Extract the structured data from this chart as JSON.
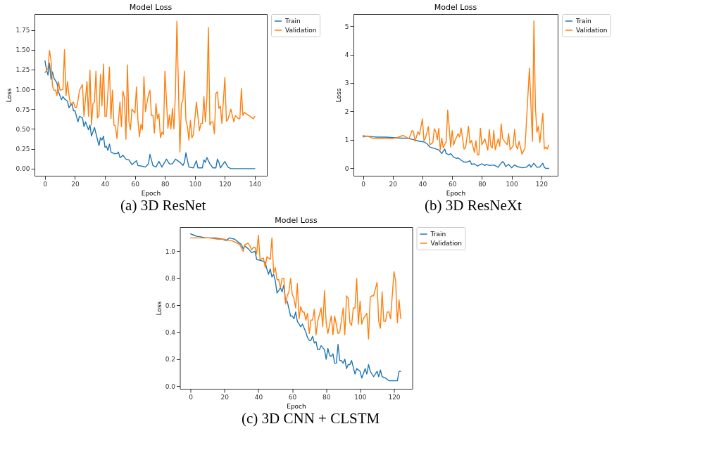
{
  "chart_data": [
    {
      "type": "line",
      "title": "Model Loss",
      "xlabel": "Epoch",
      "ylabel": "Loss",
      "annotations": [
        "(a) 3D ResNet"
      ],
      "legend": "right",
      "grid": false,
      "marker": "none",
      "line_style": "solid",
      "xlim": [
        -7,
        148
      ],
      "ylim": [
        -0.09,
        1.95
      ],
      "xticks": [
        0,
        20,
        40,
        60,
        80,
        100,
        120,
        140
      ],
      "yticks": [
        {
          "value": 0,
          "label": "0.00"
        },
        {
          "value": 0.25,
          "label": "0.25"
        },
        {
          "value": 0.5,
          "label": "0.50"
        },
        {
          "value": 0.75,
          "label": "0.75"
        },
        {
          "value": 1,
          "label": "1.00"
        },
        {
          "value": 1.25,
          "label": "1.25"
        },
        {
          "value": 1.5,
          "label": "1.50"
        },
        {
          "value": 1.75,
          "label": "1.75"
        }
      ],
      "series": [
        {
          "name": "Train",
          "color": "#1f77b4",
          "x": [
            0,
            1,
            2,
            3,
            4,
            5,
            6,
            8,
            9,
            11,
            12,
            13,
            15,
            16,
            18,
            19,
            20,
            22,
            23,
            25,
            26,
            27,
            29,
            30,
            31,
            33,
            36,
            37,
            38,
            39,
            40,
            41,
            42,
            43,
            44,
            46,
            48,
            49,
            50,
            51,
            52,
            54,
            56,
            58,
            61,
            62,
            65,
            67,
            69,
            70,
            72,
            74,
            76,
            78,
            81,
            83,
            85,
            87,
            90,
            92,
            93,
            94,
            96,
            99,
            101,
            102,
            105,
            106,
            107,
            108,
            110,
            112,
            114,
            115,
            116,
            117,
            120,
            122,
            124,
            140
          ],
          "values": [
            1.36,
            1.25,
            1.18,
            1.33,
            1.13,
            1.22,
            1.14,
            1.08,
            0.97,
            0.87,
            0.91,
            0.88,
            0.85,
            0.77,
            0.82,
            0.73,
            0.73,
            0.59,
            0.66,
            0.64,
            0.53,
            0.59,
            0.49,
            0.55,
            0.41,
            0.52,
            0.29,
            0.39,
            0.36,
            0.41,
            0.27,
            0.28,
            0.23,
            0.31,
            0.21,
            0.19,
            0.19,
            0.21,
            0.14,
            0.15,
            0.17,
            0.12,
            0.11,
            0.05,
            0.1,
            0.04,
            0.03,
            0.02,
            0.06,
            0.18,
            0.04,
            0.02,
            0.09,
            0.02,
            0.12,
            0.06,
            0.06,
            0.12,
            0.08,
            0.04,
            0.08,
            0.2,
            0.02,
            0.01,
            0.1,
            0.01,
            0.01,
            0.11,
            0.08,
            0.14,
            0.06,
            0.01,
            0.01,
            0.12,
            0.08,
            0.01,
            0.09,
            0.02,
            0.0,
            0.0
          ]
        },
        {
          "name": "Validation",
          "color": "#ff7f0e",
          "x": [
            0,
            2,
            3,
            4,
            5,
            6,
            7,
            8,
            9,
            10,
            12,
            13,
            14,
            15,
            16,
            17,
            19,
            20,
            21,
            22,
            23,
            25,
            26,
            28,
            29,
            30,
            31,
            32,
            33,
            34,
            35,
            36,
            37,
            38,
            39,
            40,
            41,
            43,
            44,
            45,
            46,
            47,
            48,
            50,
            51,
            52,
            53,
            54,
            55,
            56,
            57,
            58,
            60,
            61,
            62,
            63,
            64,
            65,
            66,
            67,
            69,
            70,
            71,
            72,
            73,
            74,
            75,
            76,
            77,
            78,
            79,
            80,
            82,
            83,
            84,
            85,
            86,
            87,
            88,
            90,
            91,
            92,
            93,
            94,
            95,
            96,
            97,
            98,
            99,
            101,
            103,
            104,
            105,
            106,
            107,
            108,
            109,
            110,
            111,
            112,
            113,
            114,
            115,
            116,
            117,
            118,
            120,
            121,
            122,
            124,
            126,
            127,
            129,
            130,
            131,
            132,
            133,
            136,
            139,
            140
          ],
          "values": [
            1.21,
            1.26,
            1.49,
            1.37,
            1.04,
            0.99,
            0.99,
            0.92,
            1.1,
            0.99,
            1.0,
            1.5,
            0.92,
            1.1,
            0.93,
            0.81,
            0.84,
            0.77,
            0.77,
            0.86,
            0.99,
            1.06,
            0.66,
            1.1,
            0.66,
            1.24,
            0.55,
            0.82,
            0.84,
            1.23,
            0.64,
            0.67,
            1.19,
            0.79,
            1.32,
            0.66,
            0.66,
            1.28,
            0.63,
            0.99,
            0.55,
            0.54,
            0.38,
            0.84,
            0.53,
            0.98,
            0.89,
            0.37,
            1.31,
            0.59,
            0.49,
            0.75,
            0.7,
            1.03,
            0.61,
            0.4,
            0.56,
            0.49,
            1.16,
            0.72,
            0.93,
            0.99,
            0.67,
            0.67,
            0.45,
            0.82,
            0.63,
            0.69,
            0.39,
            0.46,
            0.43,
            1.23,
            0.51,
            0.68,
            0.5,
            0.76,
            0.5,
            0.95,
            1.86,
            0.21,
            0.82,
            0.86,
            1.23,
            0.61,
            0.53,
            0.36,
            0.61,
            0.39,
            0.43,
            0.84,
            0.48,
            0.57,
            0.57,
            0.91,
            0.59,
            0.89,
            1.78,
            0.55,
            0.59,
            0.59,
            0.44,
            0.95,
            0.97,
            0.76,
            0.79,
            0.57,
            1.15,
            0.6,
            0.62,
            0.75,
            0.59,
            0.67,
            0.63,
            0.63,
            1.01,
            0.67,
            0.71,
            0.67,
            0.63,
            0.66
          ]
        }
      ]
    },
    {
      "type": "line",
      "title": "Model Loss",
      "xlabel": "Epoch",
      "ylabel": "Loss",
      "annotations": [
        "(b) 3D ResNeXt"
      ],
      "legend": "right",
      "grid": false,
      "marker": "none",
      "line_style": "solid",
      "xlim": [
        -6.4,
        131
      ],
      "ylim": [
        -0.26,
        5.42
      ],
      "xticks": [
        0,
        20,
        40,
        60,
        80,
        100,
        120
      ],
      "yticks": [
        0,
        1,
        2,
        3,
        4,
        5
      ],
      "series": [
        {
          "name": "Train",
          "color": "#1f77b4",
          "x": [
            0,
            5,
            9,
            15,
            20,
            26,
            30,
            34,
            38,
            41,
            43,
            45,
            48,
            51,
            53,
            55,
            56,
            58,
            59,
            61,
            63,
            64,
            66,
            68,
            70,
            72,
            73,
            75,
            77,
            80,
            82,
            83,
            85,
            88,
            91,
            92,
            94,
            95,
            96,
            98,
            100,
            102,
            104,
            107,
            110,
            112,
            113,
            115,
            117,
            119,
            121,
            122,
            123,
            125
          ],
          "values": [
            1.14,
            1.12,
            1.1,
            1.1,
            1.08,
            1.06,
            1.06,
            1.01,
            0.95,
            0.93,
            0.87,
            0.75,
            0.7,
            0.65,
            0.52,
            0.68,
            0.52,
            0.48,
            0.52,
            0.39,
            0.35,
            0.37,
            0.29,
            0.22,
            0.22,
            0.27,
            0.14,
            0.16,
            0.08,
            0.16,
            0.1,
            0.14,
            0.1,
            0.12,
            0.04,
            0.12,
            0.24,
            0.18,
            0.06,
            0.14,
            0.02,
            0.12,
            0.06,
            0.02,
            0.04,
            0.14,
            0.04,
            0.18,
            0.04,
            0.05,
            0.18,
            0.04,
            0.0,
            0.0
          ]
        },
        {
          "name": "Validation",
          "color": "#ff7f0e",
          "x": [
            0,
            3,
            7,
            12,
            19,
            23,
            27,
            31,
            33,
            34,
            35,
            37,
            38,
            40,
            41,
            42,
            44,
            45,
            47,
            48,
            49,
            50,
            51,
            52,
            53,
            54,
            56,
            57,
            58,
            59,
            60,
            61,
            62,
            64,
            65,
            66,
            68,
            69,
            71,
            72,
            73,
            75,
            76,
            77,
            78,
            79,
            80,
            82,
            84,
            85,
            86,
            87,
            88,
            89,
            91,
            92,
            93,
            94,
            97,
            98,
            99,
            101,
            102,
            103,
            104,
            105,
            107,
            109,
            112,
            114,
            115,
            116,
            117,
            118,
            119,
            121,
            122,
            123,
            124,
            125
          ],
          "values": [
            1.1,
            1.14,
            1.04,
            1.06,
            1.04,
            1.08,
            1.16,
            1.04,
            1.33,
            1.29,
            0.95,
            1.29,
            1.18,
            1.74,
            0.98,
            1.06,
            1.47,
            0.83,
            0.91,
            1.39,
            1.29,
            1.01,
            1.41,
            0.65,
            1.06,
            0.72,
            0.95,
            2.05,
            1.45,
            0.75,
            1.33,
            0.82,
            0.98,
            1.22,
            1.1,
            1.42,
            0.68,
            0.72,
            1.48,
            0.88,
            0.98,
            0.56,
            0.97,
            0.48,
            0.48,
            1.41,
            0.83,
            1.04,
            0.64,
            1.37,
            0.79,
            0.72,
            1.33,
            0.65,
            1.04,
            0.78,
            1.56,
            1.04,
            0.83,
            1.22,
            0.65,
            0.79,
            1.37,
            0.79,
            0.68,
            0.95,
            0.5,
            0.72,
            3.52,
            0.95,
            5.18,
            2.18,
            1.27,
            1.48,
            0.91,
            1.93,
            0.68,
            0.75,
            0.68,
            0.82
          ]
        }
      ]
    },
    {
      "type": "line",
      "title": "Model Loss",
      "xlabel": "Epoch",
      "ylabel": "Loss",
      "annotations": [
        "(c) 3D CNN + CLSTM"
      ],
      "legend": "right",
      "grid": false,
      "marker": "none",
      "line_style": "solid",
      "xlim": [
        -6.3,
        130.8
      ],
      "ylim": [
        -0.02,
        1.18
      ],
      "xticks": [
        0,
        20,
        40,
        60,
        80,
        100,
        120
      ],
      "yticks": [
        {
          "value": 0,
          "label": "0.0"
        },
        {
          "value": 0.2,
          "label": "0.2"
        },
        {
          "value": 0.4,
          "label": "0.4"
        },
        {
          "value": 0.6,
          "label": "0.6"
        },
        {
          "value": 0.8,
          "label": "0.8"
        },
        {
          "value": 1,
          "label": "1.0"
        }
      ],
      "series": [
        {
          "name": "Train",
          "color": "#1f77b4",
          "x": [
            0,
            2,
            4,
            5,
            9,
            15,
            19,
            21,
            23,
            26,
            28,
            30,
            31,
            32,
            34,
            36,
            38,
            39,
            42,
            44,
            45,
            46,
            47,
            48,
            49,
            50,
            51,
            53,
            54,
            55,
            56,
            57,
            59,
            60,
            61,
            62,
            63,
            65,
            66,
            68,
            69,
            70,
            71,
            72,
            73,
            74,
            75,
            76,
            77,
            79,
            80,
            81,
            82,
            83,
            84,
            85,
            86,
            87,
            88,
            89,
            90,
            91,
            92,
            93,
            94,
            95,
            97,
            98,
            100,
            101,
            103,
            104,
            105,
            106,
            108,
            110,
            111,
            112,
            113,
            115,
            117,
            118,
            120,
            122,
            123,
            124
          ],
          "values": [
            1.13,
            1.12,
            1.11,
            1.11,
            1.1,
            1.1,
            1.09,
            1.08,
            1.1,
            1.09,
            1.07,
            1.05,
            1.02,
            1.04,
            1.02,
            0.99,
            1.0,
            0.94,
            0.93,
            0.92,
            0.87,
            0.83,
            0.87,
            0.81,
            0.83,
            0.78,
            0.69,
            0.73,
            0.7,
            0.75,
            0.63,
            0.63,
            0.52,
            0.52,
            0.5,
            0.55,
            0.48,
            0.44,
            0.46,
            0.4,
            0.36,
            0.34,
            0.34,
            0.37,
            0.32,
            0.33,
            0.27,
            0.27,
            0.3,
            0.27,
            0.2,
            0.28,
            0.23,
            0.22,
            0.24,
            0.17,
            0.17,
            0.31,
            0.19,
            0.19,
            0.17,
            0.2,
            0.13,
            0.16,
            0.16,
            0.19,
            0.09,
            0.13,
            0.11,
            0.06,
            0.13,
            0.09,
            0.16,
            0.11,
            0.07,
            0.11,
            0.07,
            0.12,
            0.07,
            0.06,
            0.04,
            0.04,
            0.04,
            0.04,
            0.11,
            0.11
          ]
        },
        {
          "name": "Validation",
          "color": "#ff7f0e",
          "x": [
            0,
            3,
            11,
            16,
            20,
            22,
            24,
            26,
            29,
            31,
            32,
            34,
            35,
            36,
            37,
            38,
            39,
            40,
            41,
            43,
            44,
            45,
            47,
            48,
            49,
            50,
            51,
            52,
            53,
            54,
            55,
            56,
            57,
            58,
            59,
            60,
            61,
            62,
            63,
            64,
            65,
            66,
            67,
            68,
            69,
            70,
            71,
            72,
            73,
            74,
            75,
            77,
            78,
            79,
            80,
            81,
            83,
            84,
            85,
            87,
            88,
            90,
            91,
            92,
            93,
            94,
            95,
            96,
            97,
            98,
            99,
            100,
            101,
            102,
            104,
            105,
            106,
            107,
            108,
            110,
            111,
            112,
            113,
            114,
            115,
            116,
            117,
            118,
            120,
            121,
            122,
            123,
            124
          ],
          "values": [
            1.1,
            1.1,
            1.1,
            1.09,
            1.09,
            1.08,
            1.08,
            1.07,
            1.05,
            1.0,
            1.05,
            1.06,
            1.04,
            1.01,
            1.03,
            1.03,
            0.98,
            1.12,
            0.94,
            0.95,
            0.88,
            0.96,
            0.94,
            1.1,
            0.84,
            0.88,
            0.79,
            0.79,
            0.73,
            0.8,
            0.8,
            0.61,
            0.67,
            0.7,
            0.8,
            0.68,
            0.65,
            0.58,
            0.76,
            0.5,
            0.59,
            0.55,
            0.55,
            0.49,
            0.54,
            0.39,
            0.49,
            0.49,
            0.57,
            0.38,
            0.48,
            0.58,
            0.44,
            0.71,
            0.47,
            0.39,
            0.52,
            0.38,
            0.52,
            0.39,
            0.4,
            0.58,
            0.38,
            0.67,
            0.65,
            0.47,
            0.45,
            0.58,
            0.58,
            0.8,
            0.46,
            0.63,
            0.46,
            0.5,
            0.54,
            0.35,
            0.66,
            0.67,
            0.67,
            0.77,
            0.48,
            0.43,
            0.7,
            0.48,
            0.48,
            0.55,
            0.55,
            0.5,
            0.85,
            0.78,
            0.47,
            0.64,
            0.5
          ]
        }
      ]
    }
  ]
}
